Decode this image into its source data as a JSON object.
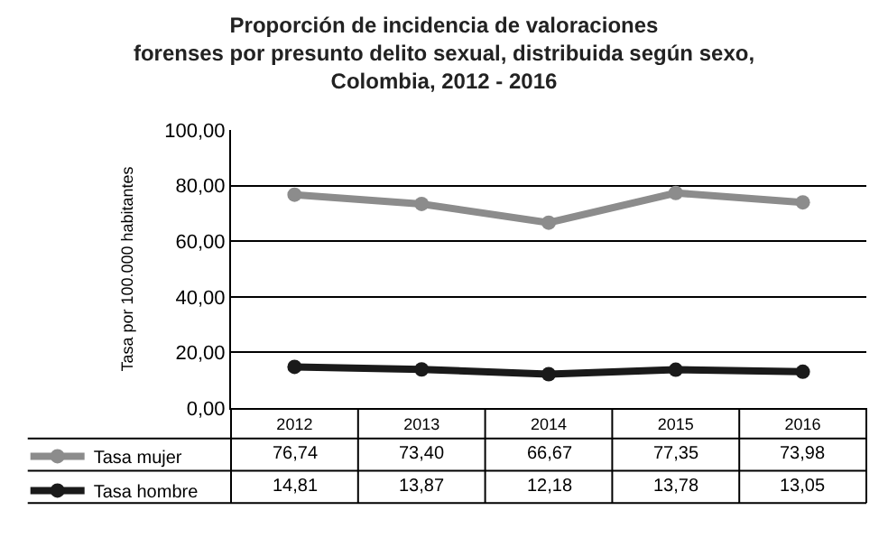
{
  "chart_data": {
    "type": "line",
    "title": "Proporción de incidencia de valoraciones\nforenses por presunto delito sexual, distribuida según sexo,\nColombia, 2012 - 2016",
    "ylabel": "Tasa por 100.000 habitantes",
    "categories": [
      "2012",
      "2013",
      "2014",
      "2015",
      "2016"
    ],
    "series": [
      {
        "name": "Tasa mujer",
        "color": "#8c8c8c",
        "values": [
          76.74,
          73.4,
          66.67,
          77.35,
          73.98
        ],
        "value_labels": [
          "76,74",
          "73,40",
          "66,67",
          "77,35",
          "73,98"
        ]
      },
      {
        "name": "Tasa hombre",
        "color": "#1a1a1a",
        "values": [
          14.81,
          13.87,
          12.18,
          13.78,
          13.05
        ],
        "value_labels": [
          "14,81",
          "13,87",
          "12,18",
          "13,78",
          "13,05"
        ]
      }
    ],
    "ylim": [
      0,
      100
    ],
    "yticks": [
      {
        "value": 0,
        "label": "0,00"
      },
      {
        "value": 20,
        "label": "20,00"
      },
      {
        "value": 40,
        "label": "40,00"
      },
      {
        "value": 60,
        "label": "60,00"
      },
      {
        "value": 80,
        "label": "80,00"
      },
      {
        "value": 100,
        "label": "100,00"
      }
    ],
    "grid": "y",
    "marker": "circle",
    "line_style": "solid",
    "legend": "bottom left",
    "data_labels": true
  }
}
